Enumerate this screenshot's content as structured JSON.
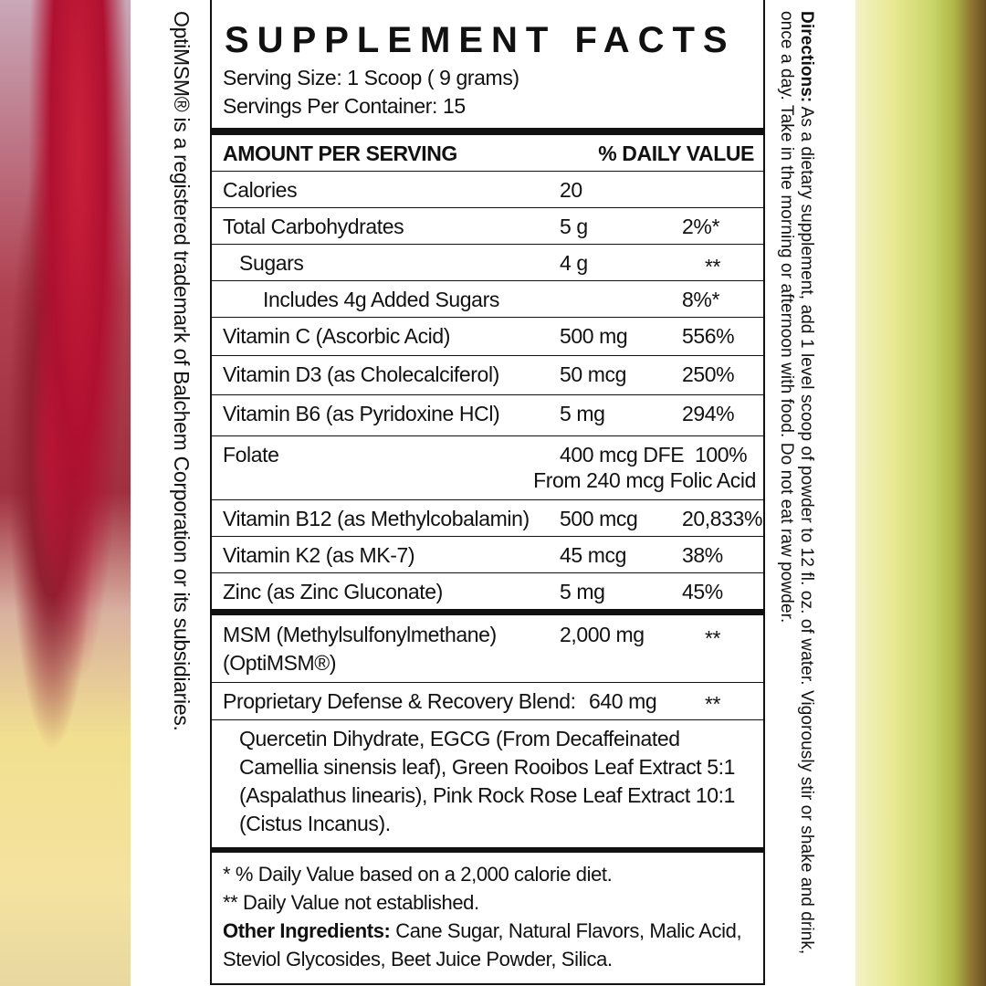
{
  "side_note": "OptiMSM® is a registered trademark of Balchem Corporation or its subsidiaries.",
  "directions": {
    "label": "Directions:",
    "text": " As a dietary supplement, add 1 level scoop of powder to 12 fl. oz. of water. Vigorously stir or shake and drink, once a day. Take in the morning or afternoon with food. Do not eat raw powder."
  },
  "facts": {
    "title": "SUPPLEMENT FACTS",
    "serving_size": "Serving Size: 1 Scoop ( 9 grams)",
    "servings_per_container": "Servings Per Container: 15",
    "header_amount": "AMOUNT PER SERVING",
    "header_dv": "% DAILY VALUE",
    "rows": [
      {
        "name": "Calories",
        "amount": "20",
        "dv": ""
      },
      {
        "name": "Total Carbohydrates",
        "amount": "5 g",
        "dv": "2%*"
      },
      {
        "name": "Sugars",
        "amount": "4 g",
        "dv": "**"
      },
      {
        "name": "Includes 4g Added Sugars",
        "amount": "",
        "dv": "8%*"
      },
      {
        "name": "Vitamin C (Ascorbic Acid)",
        "amount": "500 mg",
        "dv": "556%"
      },
      {
        "name": "Vitamin D3 (as Cholecalciferol)",
        "amount": "50 mcg",
        "dv": "250%"
      },
      {
        "name": "Vitamin B6 (as Pyridoxine HCl)",
        "amount": "5 mg",
        "dv": "294%"
      },
      {
        "name": "Folate",
        "amount": "400 mcg DFE",
        "dv": "100%",
        "sub": "From 240 mcg Folic Acid"
      },
      {
        "name": "Vitamin B12 (as Methylcobalamin)",
        "amount": "500 mcg",
        "dv": "20,833%"
      },
      {
        "name": "Vitamin K2 (as MK-7)",
        "amount": "45 mcg",
        "dv": "38%"
      },
      {
        "name": "Zinc (as Zinc Gluconate)",
        "amount": "5 mg",
        "dv": "45%"
      }
    ],
    "msm": {
      "name": "MSM (Methylsulfonylmethane)",
      "name2": "(OptiMSM®)",
      "amount": "2,000 mg",
      "dv": "**"
    },
    "blend": {
      "name": "Proprietary Defense & Recovery Blend:",
      "amount": "640 mg",
      "dv": "**",
      "ingredients": "Quercetin Dihydrate, EGCG (From Decaffeinated Camellia sinensis leaf), Green Rooibos Leaf Extract 5:1 (Aspalathus linearis), Pink Rock Rose Leaf Extract 10:1 (Cistus Incanus)."
    },
    "footnote1": "* % Daily Value based on a 2,000 calorie diet.",
    "footnote2": "**  Daily Value not established.",
    "other_label": "Other Ingredients:",
    "other_text": " Cane Sugar, Natural Flavors, Malic Acid, Steviol Glycosides, Beet Juice Powder, Silica."
  }
}
